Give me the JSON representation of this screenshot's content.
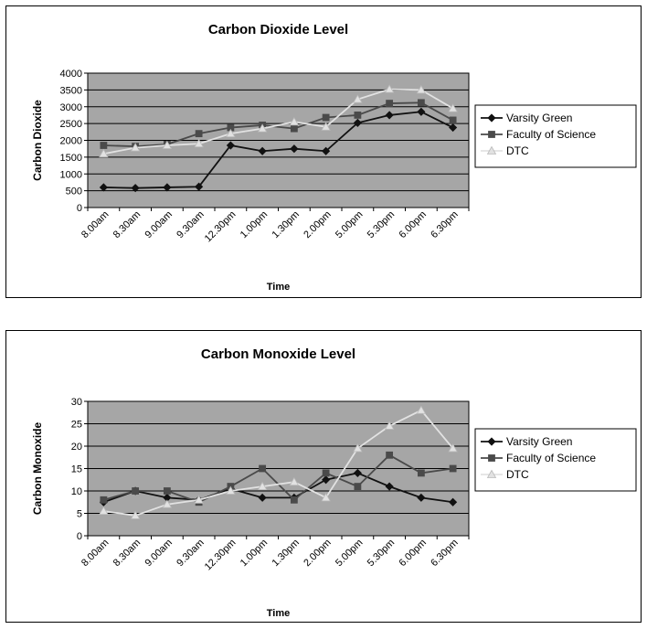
{
  "colors": {
    "plot_bg": "#a6a6a6",
    "grid": "#000000",
    "varsity": "#111111",
    "faculty": "#4a4a4a",
    "dtc": "#e2e2e2"
  },
  "chart_data": [
    {
      "type": "line",
      "title": "Carbon Dioxide Level",
      "xlabel": "Time",
      "ylabel": "Carbon Dioxide",
      "ylim": [
        0,
        4000
      ],
      "yticks": [
        0,
        500,
        1000,
        1500,
        2000,
        2500,
        3000,
        3500,
        4000
      ],
      "grid": true,
      "legend_position": "right",
      "categories": [
        "8.00am",
        "8.30am",
        "9.00am",
        "9.30am",
        "12.30pm",
        "1.00pm",
        "1.30pm",
        "2.00pm",
        "5.00pm",
        "5.30pm",
        "6.00pm",
        "6.30pm"
      ],
      "series": [
        {
          "name": "Varsity Green",
          "marker": "diamond",
          "color": "#111111",
          "values": [
            600,
            580,
            600,
            620,
            1850,
            1680,
            1750,
            1680,
            2520,
            2750,
            2850,
            2380
          ]
        },
        {
          "name": "Faculty of Science",
          "marker": "square",
          "color": "#4a4a4a",
          "values": [
            1850,
            1820,
            1880,
            2200,
            2380,
            2450,
            2350,
            2680,
            2750,
            3100,
            3120,
            2600
          ]
        },
        {
          "name": "DTC",
          "marker": "triangle",
          "color": "#e2e2e2",
          "values": [
            1600,
            1780,
            1850,
            1900,
            2200,
            2350,
            2550,
            2400,
            3220,
            3520,
            3500,
            2950
          ]
        }
      ]
    },
    {
      "type": "line",
      "title": "Carbon Monoxide Level",
      "xlabel": "Time",
      "ylabel": "Carbon Monoxide",
      "ylim": [
        0,
        30
      ],
      "yticks": [
        0,
        5,
        10,
        15,
        20,
        25,
        30
      ],
      "grid": true,
      "legend_position": "right",
      "categories": [
        "8.00am",
        "8.30am",
        "9.00am",
        "9.30am",
        "12.30pm",
        "1.00pm",
        "1.30pm",
        "2.00pm",
        "5.00pm",
        "5.30pm",
        "6.00pm",
        "6.30pm"
      ],
      "series": [
        {
          "name": "Varsity Green",
          "marker": "diamond",
          "color": "#111111",
          "values": [
            7.5,
            10,
            8.5,
            8,
            10.5,
            8.5,
            8.5,
            12.5,
            14,
            11,
            8.5,
            7.5
          ]
        },
        {
          "name": "Faculty of Science",
          "marker": "square",
          "color": "#4a4a4a",
          "values": [
            8,
            10,
            10,
            7.5,
            11,
            15,
            8,
            14,
            11,
            18,
            14,
            15
          ]
        },
        {
          "name": "DTC",
          "marker": "triangle",
          "color": "#e2e2e2",
          "values": [
            5.5,
            4.5,
            7,
            8,
            10,
            11,
            12,
            8.5,
            19.5,
            24.5,
            28,
            19.5
          ]
        }
      ]
    }
  ]
}
